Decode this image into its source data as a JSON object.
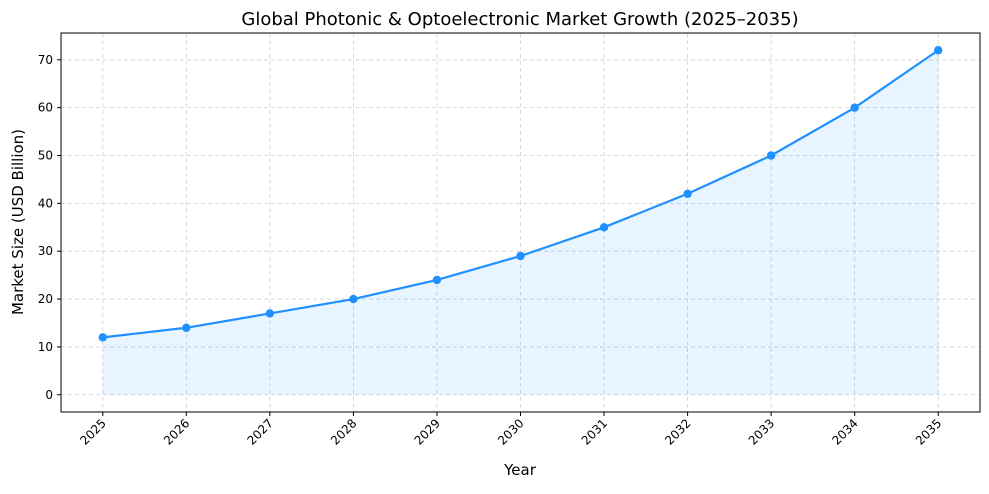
{
  "chart_data": {
    "type": "line",
    "title": "Global Photonic & Optoelectronic Market Growth (2025–2035)",
    "xlabel": "Year",
    "ylabel": "Market Size (USD Billion)",
    "x": [
      2025,
      2026,
      2027,
      2028,
      2029,
      2030,
      2031,
      2032,
      2033,
      2034,
      2035
    ],
    "series": [
      {
        "values": [
          12,
          14,
          17,
          20,
          24,
          29,
          35,
          42,
          50,
          60,
          72
        ],
        "color": "#1E90FF",
        "fill": "#1E90FF",
        "marker": "circle",
        "area_fill": true
      }
    ],
    "xlim": [
      2024.5,
      2035.5
    ],
    "ylim": [
      -3.6,
      75.6
    ],
    "yticks": [
      0,
      10,
      20,
      30,
      40,
      50,
      60,
      70
    ],
    "xtick_labels": [
      "2025",
      "2026",
      "2027",
      "2028",
      "2029",
      "2030",
      "2031",
      "2032",
      "2033",
      "2034",
      "2035"
    ],
    "xtick_rotation": 45,
    "grid": true,
    "grid_style": "dashed"
  }
}
